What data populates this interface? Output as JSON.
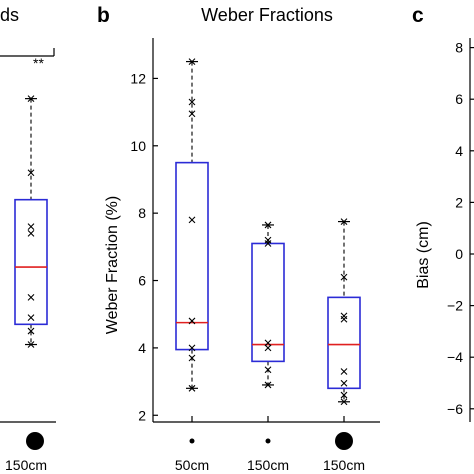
{
  "panels": {
    "a_title_fragment": "ds",
    "b_letter": "b",
    "c_letter": "c",
    "a_significance": "**",
    "a_xlabel": "150cm",
    "c_ylabel": "Bias  (cm)"
  },
  "chart_data": [
    {
      "type": "box",
      "panel": "b",
      "title": "Weber Fractions",
      "ylabel": "Weber Fraction (%)",
      "xlabel": "",
      "ylim": [
        1.8,
        13.2
      ],
      "yticks": [
        2,
        4,
        6,
        8,
        10,
        12
      ],
      "categories": [
        "50cm",
        "150cm",
        "150cm"
      ],
      "marker_sizes": [
        "small",
        "small",
        "large"
      ],
      "boxes": [
        {
          "category": "50cm",
          "whisker_low": 2.8,
          "q1": 3.95,
          "median": 4.75,
          "q3": 9.5,
          "whisker_high": 12.5,
          "points": [
            12.5,
            11.3,
            10.95,
            7.8,
            4.8,
            4.0,
            3.7,
            2.8
          ]
        },
        {
          "category": "150cm",
          "whisker_low": 2.9,
          "q1": 3.6,
          "median": 4.1,
          "q3": 7.1,
          "whisker_high": 7.65,
          "points": [
            7.65,
            7.2,
            7.1,
            4.15,
            4.0,
            3.35,
            2.9
          ]
        },
        {
          "category": "150cm",
          "whisker_low": 2.4,
          "q1": 2.8,
          "median": 4.1,
          "q3": 5.5,
          "whisker_high": 7.75,
          "points": [
            7.75,
            6.1,
            4.95,
            4.85,
            3.3,
            2.95,
            2.6,
            2.4
          ]
        }
      ]
    },
    {
      "type": "box",
      "panel": "a (partial)",
      "title": "",
      "ylabel": "",
      "xlabel": "150cm",
      "categories": [
        "150cm"
      ],
      "boxes": [
        {
          "category": "150cm",
          "whisker_low": 4.1,
          "q1": 4.7,
          "median": 6.4,
          "q3": 8.4,
          "whisker_high": 11.4,
          "points": [
            11.4,
            9.2,
            7.6,
            7.4,
            5.5,
            4.9,
            4.5,
            4.1
          ]
        }
      ]
    },
    {
      "type": "box",
      "panel": "c (partial)",
      "title": "",
      "ylabel": "Bias  (cm)",
      "yticks": [
        8,
        6,
        4,
        2,
        0,
        -2,
        -4,
        -6
      ],
      "ytick_labels": [
        "8",
        "6",
        "4",
        "2",
        "0",
        "−2",
        "−4",
        "−6"
      ]
    }
  ]
}
